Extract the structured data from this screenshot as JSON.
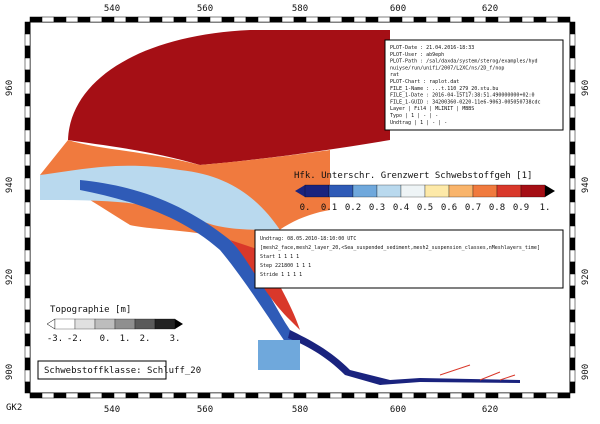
{
  "frame": {
    "x_labels": [
      "540",
      "560",
      "580",
      "600",
      "620"
    ],
    "y_labels": [
      "960",
      "940",
      "920",
      "900"
    ],
    "projection": "GK2"
  },
  "info_box": {
    "lines": [
      "PLOT-Date : 21.04.2016-18:33",
      "PLOT-User : ab9eph",
      "PLOT-Path : /sal/daxda/system/sterog/examples/hyd",
      "nuiyse/run/unifi/2007/L2XC/ns/2D_f/nop",
      "rat",
      "PLOT-Chart : raplot.dat",
      "FILE_1-Name : ...t.110_279_20.stu.bu",
      "FILE_1-Date : 2016-04-15T17:38:51.490000000+02:0",
      "FILE_1-GUID : 34200360-0220-11e6-9063-005050738cdc",
      "Layer | Fil4 | MLINIT | MBBS",
      "Typo | 1 | - | -",
      "Undtrag | 1 | - | -"
    ]
  },
  "time_box": {
    "lines": [
      "Undtrag: 08.05.2010-18:10:00 UTC",
      "[mesh2_face,mesh2_layer_20,<Sea_suspended_sediment,mesh2_suspension_classes,nMeshlayers_time]",
      "Start      1      1      1      1",
      "Step   221800      1      1      1",
      "Stride     1      1      1      1"
    ]
  },
  "colorbar": {
    "title": "Hfk. Unterschr. Grenzwert Schwebstoffgeh [1]",
    "labels": [
      "0.",
      "0.1",
      "0.2",
      "0.3",
      "0.4",
      "0.5",
      "0.6",
      "0.7",
      "0.8",
      "0.9",
      "1."
    ],
    "colors": [
      "#1a237e",
      "#2f5bb7",
      "#6fa8dc",
      "#b9d9ee",
      "#eef4f6",
      "#fde9a8",
      "#f9b46b",
      "#f07a3e",
      "#d9382a",
      "#a50f15"
    ]
  },
  "topo_bar": {
    "title": "Topographie [m]",
    "labels": [
      "-3.",
      "-2.",
      "0.",
      "1.",
      "2.",
      "3."
    ],
    "colors": [
      "#ffffff",
      "#e0e0e0",
      "#bdbdbd",
      "#8f8f8f",
      "#5a5a5a",
      "#222222"
    ]
  },
  "class_box": {
    "text": "Schwebstoffklasse: Schluff_20"
  }
}
